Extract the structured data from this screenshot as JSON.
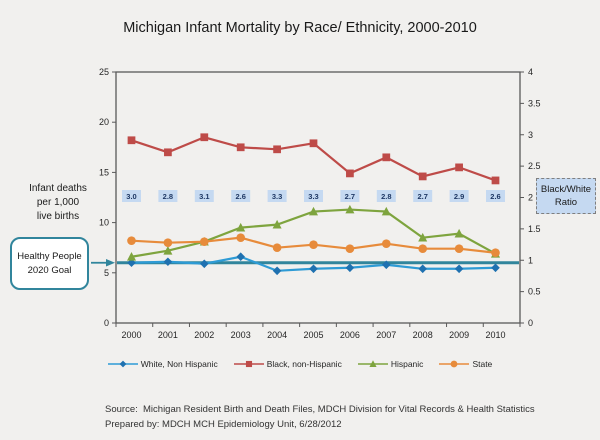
{
  "title": "Michigan Infant Mortality by Race/ Ethnicity, 2000-2010",
  "chart_data": {
    "type": "line",
    "categories": [
      "2000",
      "2001",
      "2002",
      "2003",
      "2004",
      "2005",
      "2006",
      "2007",
      "2008",
      "2009",
      "2010"
    ],
    "series": [
      {
        "name": "White, Non Hispanic",
        "marker": "diamond",
        "color": "#2E9BD5",
        "marker_color": "#1F71B0",
        "values": [
          6.0,
          6.1,
          5.9,
          6.6,
          5.2,
          5.4,
          5.5,
          5.8,
          5.4,
          5.4,
          5.5
        ]
      },
      {
        "name": "Black, non-Hispanic",
        "marker": "square",
        "color": "#BE4B48",
        "marker_color": "#BE4B48",
        "values": [
          18.2,
          17.0,
          18.5,
          17.5,
          17.3,
          17.9,
          14.9,
          16.5,
          14.6,
          15.5,
          14.2
        ]
      },
      {
        "name": "Hispanic",
        "marker": "triangle",
        "color": "#7EA43E",
        "marker_color": "#7EA43E",
        "values": [
          6.6,
          7.2,
          8.1,
          9.5,
          9.8,
          11.1,
          11.3,
          11.1,
          8.5,
          8.9,
          6.9
        ]
      },
      {
        "name": "State",
        "marker": "circle",
        "color": "#E78B3B",
        "marker_color": "#E78B3B",
        "values": [
          8.2,
          8.0,
          8.1,
          8.5,
          7.5,
          7.8,
          7.4,
          7.9,
          7.4,
          7.4,
          7.0
        ]
      }
    ],
    "ratio_series": {
      "name": "Black/White Ratio",
      "values": [
        "3.0",
        "2.8",
        "3.1",
        "2.6",
        "3.3",
        "3.3",
        "2.7",
        "2.8",
        "2.7",
        "2.9",
        "2.6"
      ],
      "bg": "#C5D9F1",
      "text_color": "#1F3864"
    },
    "left_axis": {
      "label": "Infant deaths\nper 1,000\nlive births",
      "ticks": [
        "0",
        "5",
        "10",
        "15",
        "20",
        "25"
      ],
      "range": [
        0,
        25
      ]
    },
    "right_axis": {
      "label": "Black/White\nRatio",
      "ticks": [
        "0",
        "0.5",
        "1",
        "1.5",
        "2",
        "2.5",
        "3",
        "3.5",
        "4"
      ],
      "range": [
        0,
        4
      ]
    },
    "goal_line": {
      "value": 6.0,
      "color": "#31859C",
      "label": "Healthy People\n2020 Goal"
    },
    "legend_position": "bottom",
    "grid": false,
    "axis_color": "#595959"
  },
  "footer": {
    "source_line": "Source:  Michigan Resident Birth and Death Files, MDCH Division for Vital Records & Health Statistics",
    "prepared_line": "Prepared by: MDCH MCH Epidemiology Unit, 6/28/2012"
  }
}
